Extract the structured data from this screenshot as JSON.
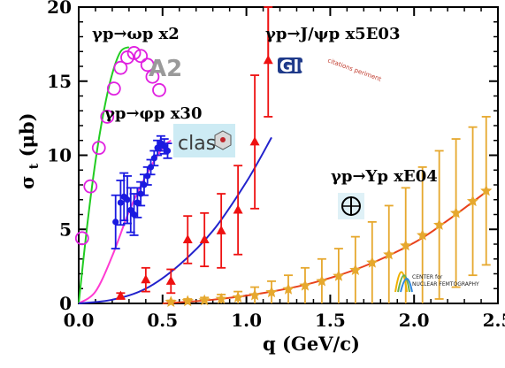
{
  "chart_data": {
    "type": "scatter",
    "xlabel": "q  (GeV/c)",
    "ylabel": "σ_t  (μb)",
    "xlim": [
      0.0,
      2.5
    ],
    "ylim": [
      0,
      20
    ],
    "xticks": [
      "0.0",
      "0.5",
      "1.0",
      "1.5",
      "2.0",
      "2.5"
    ],
    "yticks": [
      "0",
      "5",
      "10",
      "15",
      "20"
    ],
    "grid": false,
    "annotations": {
      "omega": "γp→ωp  x2",
      "jpsi": "γp→J/ψp  x5E03",
      "phi": "γp→φp  x30",
      "upsilon": "γp→Υp  xE04"
    },
    "logos": {
      "a2": "A2",
      "gluex": "GlueX",
      "gluex_sub": "citations periment",
      "clas": "clas",
      "cnf": "CENTER for NUCLEAR FEMTOGRAPHY"
    },
    "series": [
      {
        "key": "omega",
        "marker": "open-circle",
        "color": "#e020e0",
        "x": [
          0.02,
          0.07,
          0.12,
          0.17,
          0.21,
          0.25,
          0.29,
          0.33,
          0.37,
          0.41,
          0.44,
          0.48
        ],
        "y": [
          4.4,
          7.9,
          10.5,
          12.6,
          14.5,
          15.9,
          16.6,
          16.9,
          16.7,
          16.1,
          15.3,
          14.4
        ],
        "err": [],
        "fit": {
          "color": "#22cc22",
          "x": [
            0.0,
            0.05,
            0.1,
            0.15,
            0.2,
            0.25,
            0.3
          ],
          "y": [
            0.0,
            5.2,
            9.6,
            13.0,
            15.5,
            17.0,
            17.3
          ]
        }
      },
      {
        "key": "phi",
        "marker": "filled-circle",
        "color": "#1a1ae0",
        "x": [
          0.22,
          0.25,
          0.27,
          0.29,
          0.31,
          0.33,
          0.35,
          0.37,
          0.39,
          0.41,
          0.43,
          0.45,
          0.47,
          0.49,
          0.51,
          0.53
        ],
        "y": [
          5.5,
          6.8,
          7.2,
          7.0,
          6.3,
          6.0,
          6.8,
          7.4,
          8.0,
          8.6,
          9.2,
          9.8,
          10.5,
          10.8,
          10.6,
          10.3
        ],
        "err": [
          1.8,
          1.5,
          1.6,
          1.6,
          1.5,
          1.4,
          1.0,
          0.8,
          0.7,
          0.6,
          0.5,
          0.5,
          0.5,
          0.5,
          0.5,
          0.5
        ],
        "fit": {
          "color": "#ff3ad2",
          "x": [
            0.0,
            0.1,
            0.2,
            0.3,
            0.4,
            0.5,
            0.55
          ],
          "y": [
            0.0,
            0.8,
            3.2,
            6.2,
            8.6,
            10.5,
            11.0
          ]
        }
      },
      {
        "key": "jpsi",
        "marker": "filled-triangle",
        "color": "#ee1111",
        "x": [
          0.25,
          0.4,
          0.55,
          0.65,
          0.75,
          0.85,
          0.95,
          1.05,
          1.13
        ],
        "y": [
          0.5,
          1.6,
          1.5,
          4.3,
          4.3,
          4.9,
          6.3,
          10.9,
          16.4
        ],
        "err": [
          0.2,
          0.8,
          0.8,
          1.6,
          1.8,
          2.5,
          3.0,
          4.5,
          3.8
        ],
        "fit": {
          "color": "#2222cc",
          "x": [
            0.0,
            0.2,
            0.4,
            0.6,
            0.8,
            1.0,
            1.15
          ],
          "y": [
            0.0,
            0.25,
            1.0,
            2.6,
            4.9,
            8.2,
            11.2
          ]
        }
      },
      {
        "key": "upsilon",
        "marker": "star",
        "color": "#e6a82e",
        "x": [
          0.55,
          0.65,
          0.75,
          0.85,
          0.95,
          1.05,
          1.15,
          1.25,
          1.35,
          1.45,
          1.55,
          1.65,
          1.75,
          1.85,
          1.95,
          2.05,
          2.15,
          2.25,
          2.35,
          2.43
        ],
        "y": [
          0.1,
          0.15,
          0.2,
          0.3,
          0.4,
          0.55,
          0.75,
          0.95,
          1.2,
          1.5,
          1.85,
          2.25,
          2.75,
          3.3,
          3.9,
          4.6,
          5.3,
          6.1,
          6.9,
          7.6
        ],
        "err": [
          0.1,
          0.15,
          0.2,
          0.3,
          0.4,
          0.55,
          0.75,
          0.95,
          1.2,
          1.5,
          1.85,
          2.25,
          2.75,
          3.3,
          3.9,
          4.6,
          5.0,
          5.0,
          5.0,
          5.0
        ],
        "fit": {
          "color": "#e8401c",
          "x": [
            0.5,
            0.8,
            1.1,
            1.4,
            1.7,
            2.0,
            2.2,
            2.45
          ],
          "y": [
            0.0,
            0.25,
            0.7,
            1.4,
            2.5,
            4.1,
            5.6,
            7.7
          ]
        }
      }
    ]
  }
}
